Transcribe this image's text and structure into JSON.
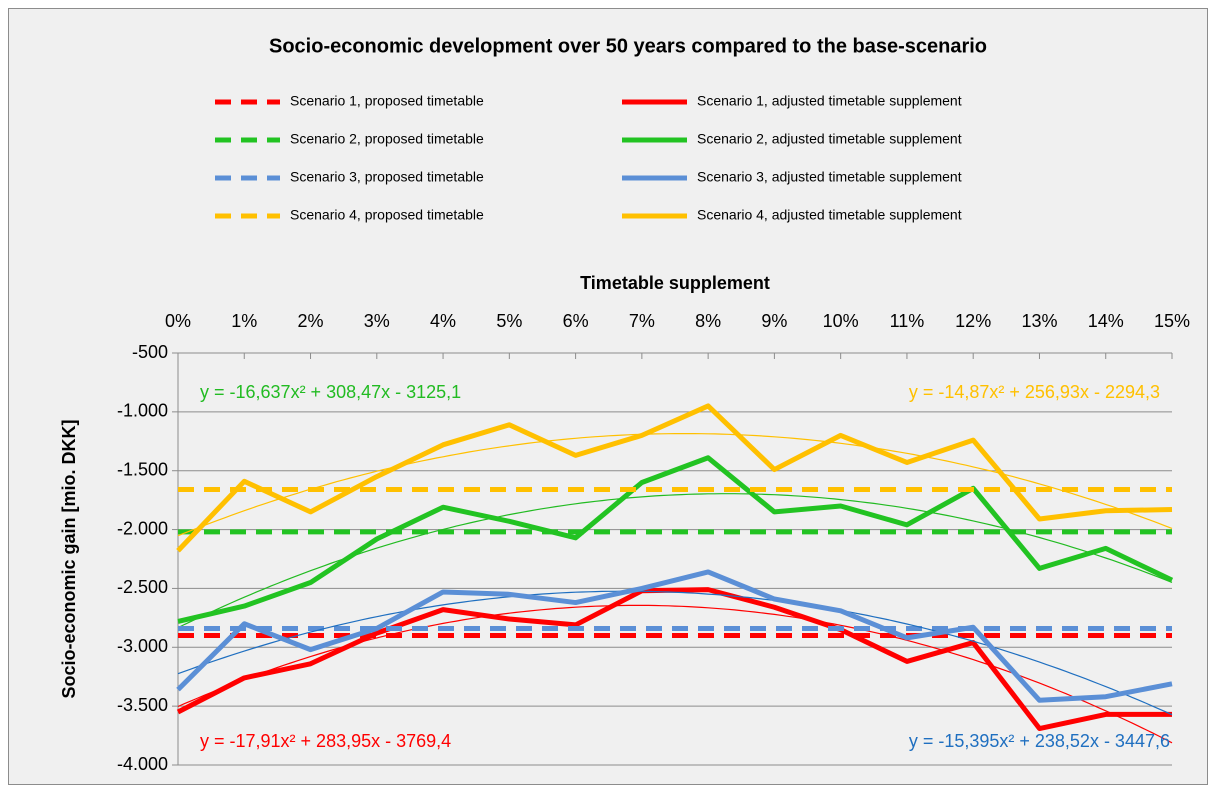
{
  "chart_data": {
    "type": "line",
    "title": "Socio-economic development over 50 years compared to the base-scenario",
    "x_label": "Timetable supplement",
    "y_label": "Socio-economic gain [mio. DKK]",
    "categories": [
      "0%",
      "1%",
      "2%",
      "3%",
      "4%",
      "5%",
      "6%",
      "7%",
      "8%",
      "9%",
      "10%",
      "11%",
      "12%",
      "13%",
      "14%",
      "15%"
    ],
    "ylim": [
      -4000,
      -500
    ],
    "yticks": [
      {
        "value": -500,
        "label": "-500"
      },
      {
        "value": -1000,
        "label": "-1.000"
      },
      {
        "value": -1500,
        "label": "-1.500"
      },
      {
        "value": -2000,
        "label": "-2.000"
      },
      {
        "value": -2500,
        "label": "-2.500"
      },
      {
        "value": -3000,
        "label": "-3.000"
      },
      {
        "value": -3500,
        "label": "-3.500"
      },
      {
        "value": -4000,
        "label": "-4.000"
      }
    ],
    "grid": true,
    "series": [
      {
        "name": "Scenario 1, proposed timetable",
        "color": "#ff0000",
        "dashed": true,
        "values": [
          -2900,
          -2900,
          -2900,
          -2900,
          -2900,
          -2900,
          -2900,
          -2900,
          -2900,
          -2900,
          -2900,
          -2900,
          -2900,
          -2900,
          -2900,
          -2900
        ]
      },
      {
        "name": "Scenario 1, adjusted timetable supplement",
        "color": "#ff0000",
        "dashed": false,
        "values": [
          -3550,
          -3260,
          -3140,
          -2880,
          -2680,
          -2760,
          -2810,
          -2520,
          -2510,
          -2660,
          -2850,
          -3120,
          -2960,
          -3690,
          -3570,
          -3570
        ],
        "trend": {
          "a": -17.91,
          "b": 283.95,
          "c": -3769.4,
          "label": "y = -17,91x² + 283,95x - 3769,4",
          "color": "#ff0000",
          "corner": "bottom-left"
        }
      },
      {
        "name": "Scenario 2, proposed timetable",
        "color": "#22c322",
        "dashed": true,
        "values": [
          -2020,
          -2020,
          -2020,
          -2020,
          -2020,
          -2020,
          -2020,
          -2020,
          -2020,
          -2020,
          -2020,
          -2020,
          -2020,
          -2020,
          -2020,
          -2020
        ]
      },
      {
        "name": "Scenario 2, adjusted timetable supplement",
        "color": "#22c322",
        "dashed": false,
        "values": [
          -2780,
          -2650,
          -2450,
          -2080,
          -1810,
          -1930,
          -2070,
          -1600,
          -1390,
          -1850,
          -1800,
          -1960,
          -1650,
          -2330,
          -2160,
          -2430
        ],
        "trend": {
          "a": -16.637,
          "b": 308.47,
          "c": -3125.1,
          "label": "y = -16,637x² + 308,47x - 3125,1",
          "color": "#22bb22",
          "corner": "top-left"
        }
      },
      {
        "name": "Scenario 3, proposed timetable",
        "color": "#5b8fd6",
        "dashed": true,
        "values": [
          -2840,
          -2840,
          -2840,
          -2840,
          -2840,
          -2840,
          -2840,
          -2840,
          -2840,
          -2840,
          -2840,
          -2840,
          -2840,
          -2840,
          -2840,
          -2840
        ]
      },
      {
        "name": "Scenario 3, adjusted timetable supplement",
        "color": "#5b8fd6",
        "dashed": false,
        "values": [
          -3360,
          -2800,
          -3020,
          -2840,
          -2530,
          -2550,
          -2620,
          -2500,
          -2360,
          -2590,
          -2690,
          -2920,
          -2830,
          -3450,
          -3420,
          -3310
        ],
        "trend": {
          "a": -15.395,
          "b": 238.52,
          "c": -3447.6,
          "label": "y = -15,395x² + 238,52x - 3447,6",
          "color": "#1f6fc0",
          "corner": "bottom-right"
        }
      },
      {
        "name": "Scenario 4, proposed timetable",
        "color": "#ffc000",
        "dashed": true,
        "values": [
          -1660,
          -1660,
          -1660,
          -1660,
          -1660,
          -1660,
          -1660,
          -1660,
          -1660,
          -1660,
          -1660,
          -1660,
          -1660,
          -1660,
          -1660,
          -1660
        ]
      },
      {
        "name": "Scenario 4, adjusted timetable supplement",
        "color": "#ffc000",
        "dashed": false,
        "values": [
          -2180,
          -1590,
          -1850,
          -1550,
          -1280,
          -1110,
          -1370,
          -1200,
          -950,
          -1490,
          -1200,
          -1430,
          -1240,
          -1910,
          -1840,
          -1830
        ],
        "trend": {
          "a": -14.87,
          "b": 256.93,
          "c": -2294.3,
          "label": "y = -14,87x² + 256,93x - 2294,3",
          "color": "#ffc000",
          "corner": "top-right"
        }
      }
    ]
  }
}
